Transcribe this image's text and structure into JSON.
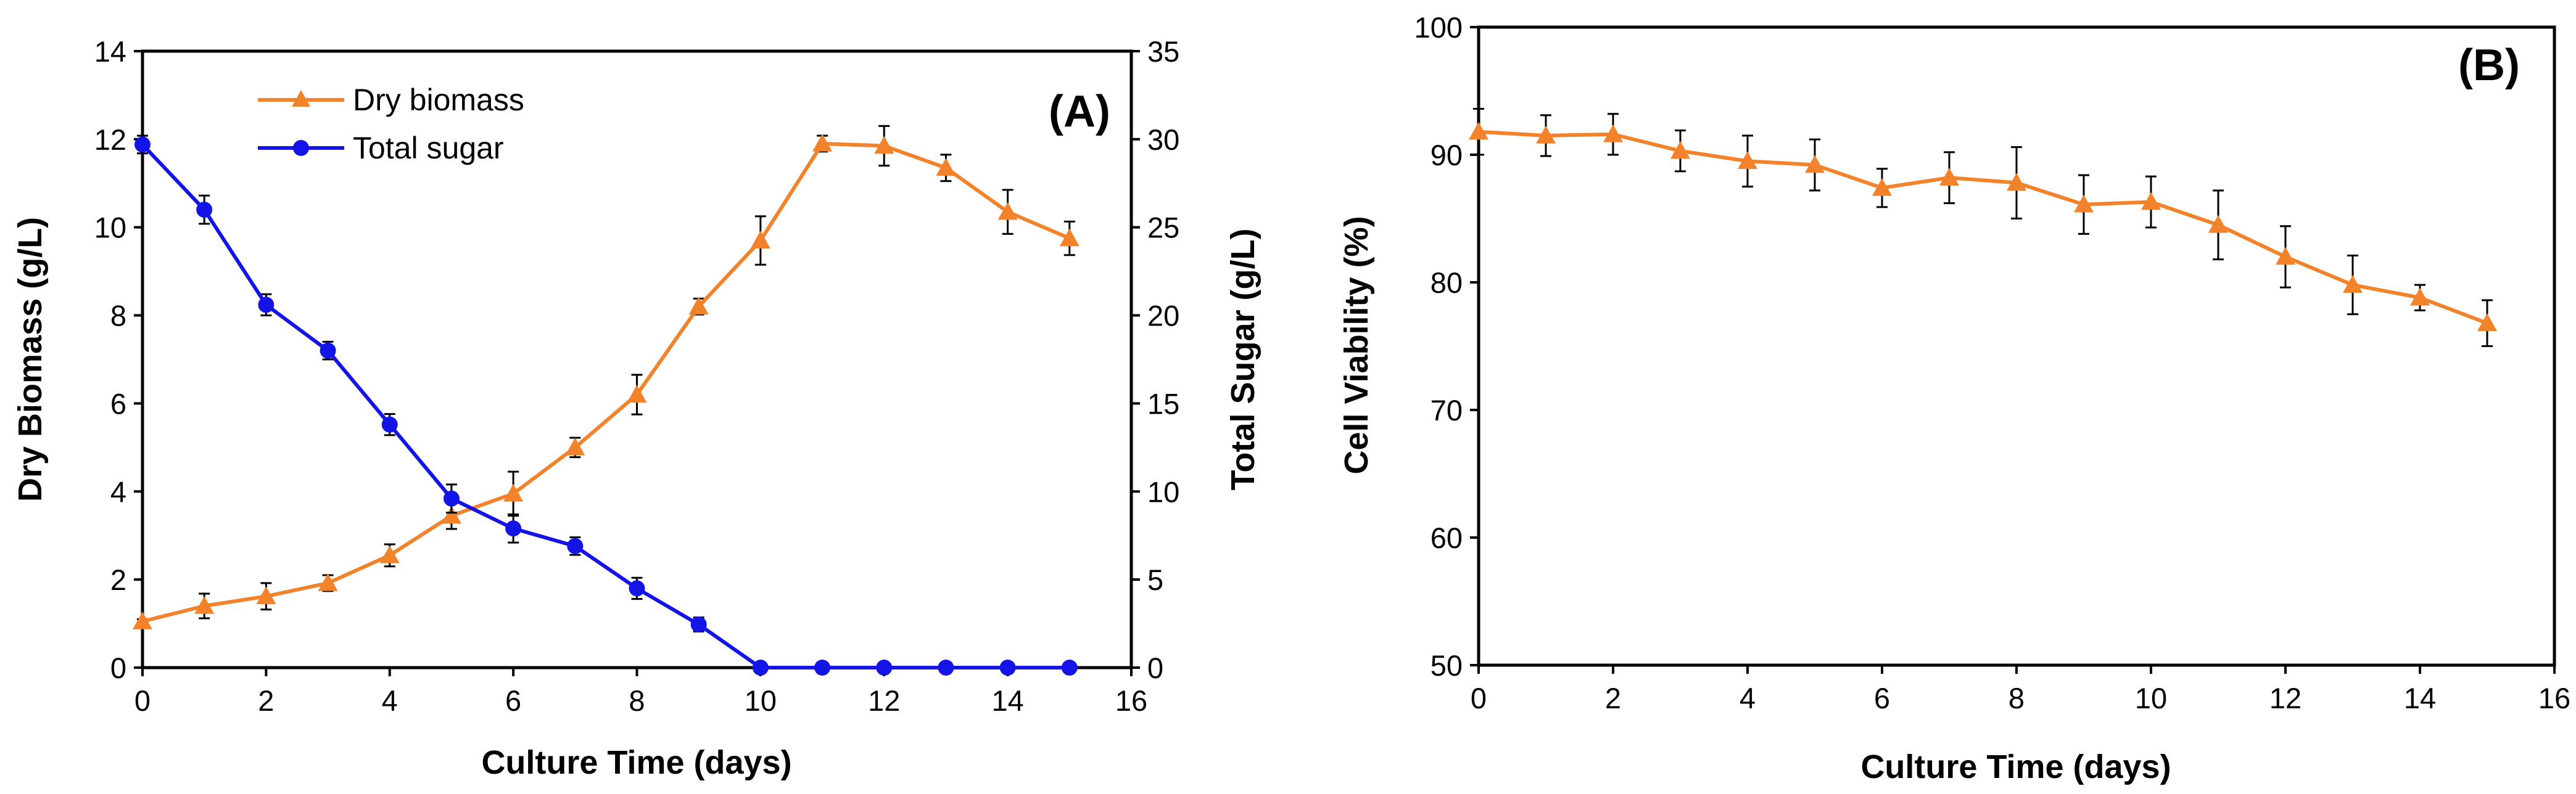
{
  "colors": {
    "orange": "#F2832A",
    "blue": "#1414E6",
    "axis": "#000000"
  },
  "chart_data": [
    {
      "panel": "(A)",
      "type": "line",
      "xlabel": "Culture Time (days)",
      "ylabel_left": "Dry Biomass (g/L)",
      "ylabel_right": "Total Sugar (g/L)",
      "xlim": [
        0,
        16
      ],
      "ylim_left": [
        0,
        14
      ],
      "ylim_right": [
        0,
        35
      ],
      "xticks": [
        "0",
        "2",
        "4",
        "6",
        "8",
        "10",
        "12",
        "14",
        "16"
      ],
      "yticks_left": [
        "0",
        "2",
        "4",
        "6",
        "8",
        "10",
        "12",
        "14"
      ],
      "yticks_right": [
        "0",
        "5",
        "10",
        "15",
        "20",
        "25",
        "30",
        "35"
      ],
      "legend_position": "top-left",
      "series": [
        {
          "name": "Dry biomass",
          "axis": "left",
          "marker": "triangle",
          "color": "#F2832A",
          "x": [
            0,
            1,
            2,
            3,
            4,
            5,
            6,
            7,
            8,
            9,
            10,
            11,
            12,
            13,
            14,
            15
          ],
          "y": [
            1.05,
            1.4,
            1.62,
            1.92,
            2.55,
            3.45,
            3.95,
            5.0,
            6.2,
            8.2,
            9.7,
            11.9,
            11.85,
            11.35,
            10.35,
            9.75
          ],
          "err": [
            0.05,
            0.28,
            0.3,
            0.18,
            0.25,
            0.3,
            0.5,
            0.22,
            0.45,
            0.18,
            0.55,
            0.18,
            0.45,
            0.3,
            0.5,
            0.38
          ]
        },
        {
          "name": "Total sugar",
          "axis": "right",
          "marker": "circle",
          "color": "#1414E6",
          "x": [
            0,
            1,
            2,
            3,
            4,
            5,
            6,
            7,
            8,
            9,
            10,
            11,
            12,
            13,
            14,
            15
          ],
          "y": [
            29.7,
            26.0,
            20.6,
            18.0,
            13.8,
            9.6,
            7.9,
            6.9,
            4.5,
            2.45,
            0,
            0,
            0,
            0,
            0,
            0
          ],
          "err": [
            0.5,
            0.8,
            0.6,
            0.5,
            0.6,
            0.8,
            0.8,
            0.5,
            0.6,
            0.4,
            0,
            0,
            0,
            0,
            0,
            0
          ]
        }
      ]
    },
    {
      "panel": "(B)",
      "type": "line",
      "xlabel": "Culture Time  (days)",
      "ylabel": "Cell Viability (%)",
      "xlim": [
        0,
        16
      ],
      "ylim": [
        50,
        100
      ],
      "xticks": [
        "0",
        "2",
        "4",
        "6",
        "8",
        "10",
        "12",
        "14",
        "16"
      ],
      "yticks": [
        "50",
        "60",
        "70",
        "80",
        "90",
        "100"
      ],
      "series": [
        {
          "name": "Cell viability",
          "marker": "triangle",
          "color": "#F2832A",
          "x": [
            0,
            1,
            2,
            3,
            4,
            5,
            6,
            7,
            8,
            9,
            10,
            11,
            12,
            13,
            14,
            15
          ],
          "y": [
            91.8,
            91.5,
            91.6,
            90.3,
            89.5,
            89.2,
            87.4,
            88.2,
            87.8,
            86.1,
            86.3,
            84.5,
            82.0,
            79.8,
            78.8,
            76.8
          ],
          "err": [
            1.8,
            1.6,
            1.6,
            1.6,
            2.0,
            2.0,
            1.5,
            2.0,
            2.8,
            2.3,
            2.0,
            2.7,
            2.4,
            2.3,
            1.0,
            1.8
          ]
        }
      ]
    }
  ]
}
